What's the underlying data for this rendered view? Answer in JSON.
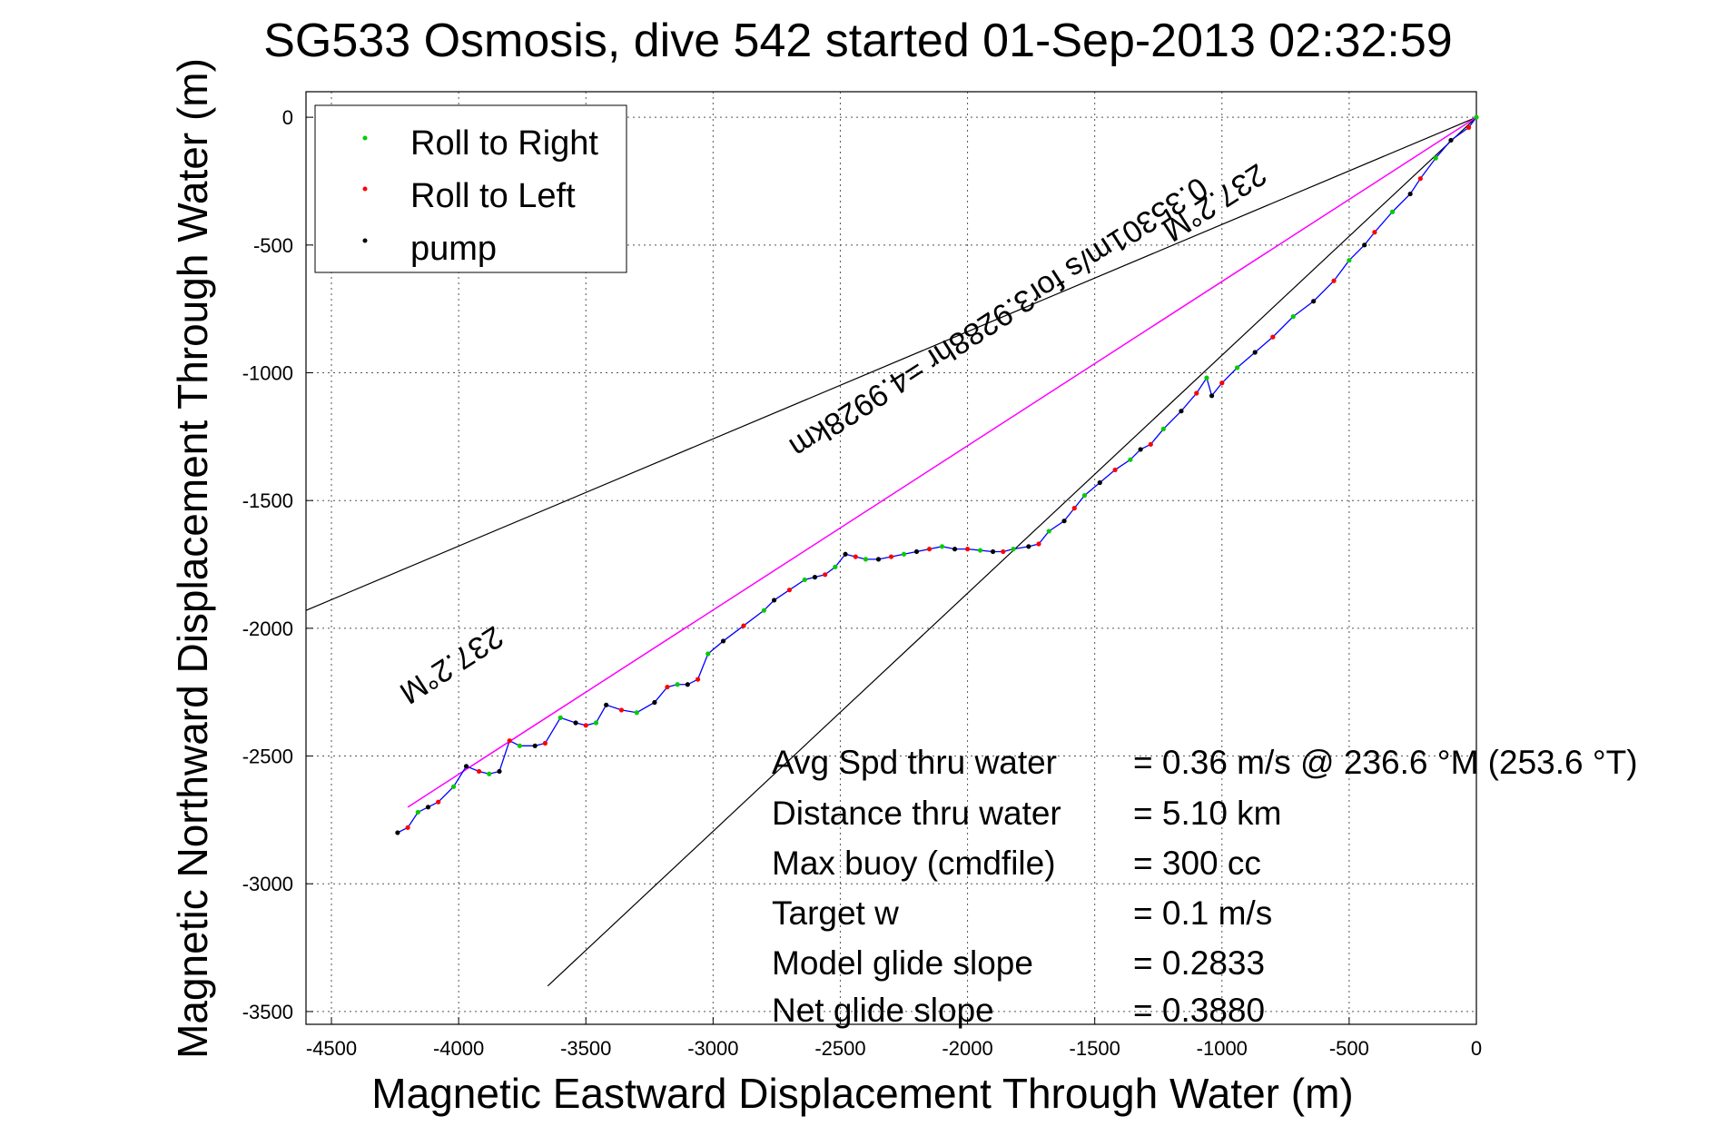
{
  "chart_data": {
    "type": "scatter",
    "title": "SG533 Osmosis, dive 542 started 01-Sep-2013 02:32:59",
    "xlabel": "Magnetic Eastward Displacement Through Water (m)",
    "ylabel": "Magnetic Northward Displacement Through Water (m)",
    "xlim": [
      -4600,
      0
    ],
    "ylim": [
      -3550,
      100
    ],
    "xticks": [
      -4500,
      -4000,
      -3500,
      -3000,
      -2500,
      -2000,
      -1500,
      -1000,
      -500,
      0
    ],
    "yticks": [
      0,
      -500,
      -1000,
      -1500,
      -2000,
      -2500,
      -3000,
      -3500
    ],
    "xtick_labels": [
      "-4500",
      "-4000",
      "-3500",
      "-3000",
      "-2500",
      "-2000",
      "-1500",
      "-1000",
      "-500",
      "0"
    ],
    "ytick_labels": [
      "0",
      "-500",
      "-1000",
      "-1500",
      "-2000",
      "-2500",
      "-3000",
      "-3500"
    ],
    "grid": true,
    "legend_position": "top-left",
    "legend": [
      {
        "name": "Roll to Right",
        "color": "#00cc00"
      },
      {
        "name": "Roll to Left",
        "color": "#ff0000"
      },
      {
        "name": "pump",
        "color": "#000000"
      }
    ],
    "colors": {
      "track": "#0000ff",
      "heading_line": "#ff00ff",
      "reference_line": "#000000"
    },
    "track": {
      "x": [
        0,
        -30,
        -100,
        -160,
        -220,
        -260,
        -330,
        -400,
        -440,
        -500,
        -560,
        -640,
        -720,
        -800,
        -870,
        -940,
        -1000,
        -1040,
        -1060,
        -1100,
        -1160,
        -1230,
        -1280,
        -1320,
        -1360,
        -1420,
        -1480,
        -1540,
        -1580,
        -1620,
        -1680,
        -1720,
        -1760,
        -1820,
        -1860,
        -1900,
        -1950,
        -2000,
        -2050,
        -2100,
        -2150,
        -2200,
        -2250,
        -2300,
        -2350,
        -2400,
        -2440,
        -2480,
        -2520,
        -2560,
        -2600,
        -2640,
        -2700,
        -2760,
        -2800,
        -2880,
        -2960,
        -3020,
        -3060,
        -3100,
        -3140,
        -3180,
        -3230,
        -3300,
        -3360,
        -3420,
        -3460,
        -3500,
        -3540,
        -3600,
        -3660,
        -3700,
        -3760,
        -3800,
        -3840,
        -3880,
        -3920,
        -3970,
        -4020,
        -4080,
        -4120,
        -4160,
        -4200,
        -4240
      ],
      "y": [
        0,
        -40,
        -90,
        -160,
        -240,
        -300,
        -370,
        -450,
        -500,
        -560,
        -640,
        -720,
        -780,
        -860,
        -920,
        -980,
        -1040,
        -1090,
        -1020,
        -1080,
        -1150,
        -1220,
        -1280,
        -1300,
        -1340,
        -1380,
        -1430,
        -1480,
        -1530,
        -1580,
        -1620,
        -1670,
        -1680,
        -1690,
        -1700,
        -1700,
        -1695,
        -1690,
        -1690,
        -1680,
        -1690,
        -1700,
        -1710,
        -1720,
        -1730,
        -1730,
        -1720,
        -1710,
        -1760,
        -1790,
        -1800,
        -1810,
        -1850,
        -1890,
        -1930,
        -1990,
        -2050,
        -2100,
        -2200,
        -2220,
        -2220,
        -2230,
        -2290,
        -2330,
        -2320,
        -2300,
        -2370,
        -2380,
        -2370,
        -2350,
        -2450,
        -2460,
        -2460,
        -2440,
        -2560,
        -2570,
        -2560,
        -2540,
        -2620,
        -2680,
        -2700,
        -2720,
        -2780,
        -2800
      ]
    },
    "heading_line": {
      "x": [
        0,
        -4200
      ],
      "y": [
        0,
        -2700
      ]
    },
    "reference_lines": [
      {
        "x": [
          0,
          -4600
        ],
        "y": [
          0,
          -1930
        ]
      },
      {
        "x": [
          0,
          -3650
        ],
        "y": [
          0,
          -3400
        ]
      }
    ],
    "annotations": [
      {
        "text": "237.2°M",
        "x": -1050,
        "y": -300
      },
      {
        "text": "0.35301m/s for3.9288hr =4.9928km",
        "x": -1900,
        "y": -750
      },
      {
        "text": "237.2°M",
        "x": -4050,
        "y": -2110
      }
    ],
    "summary": [
      {
        "label": "Avg Spd thru water",
        "value": "=  0.36 m/s @ 236.6 °M (253.6 °T)"
      },
      {
        "label": "Distance thru water",
        "value": "=  5.10 km"
      },
      {
        "label": "Max buoy (cmdfile)",
        "value": "= 300 cc"
      },
      {
        "label": "Target w",
        "value": "= 0.1 m/s"
      },
      {
        "label": "Model glide slope",
        "value": "= 0.2833"
      },
      {
        "label": "Net glide slope",
        "value": "= 0.3880"
      }
    ]
  }
}
